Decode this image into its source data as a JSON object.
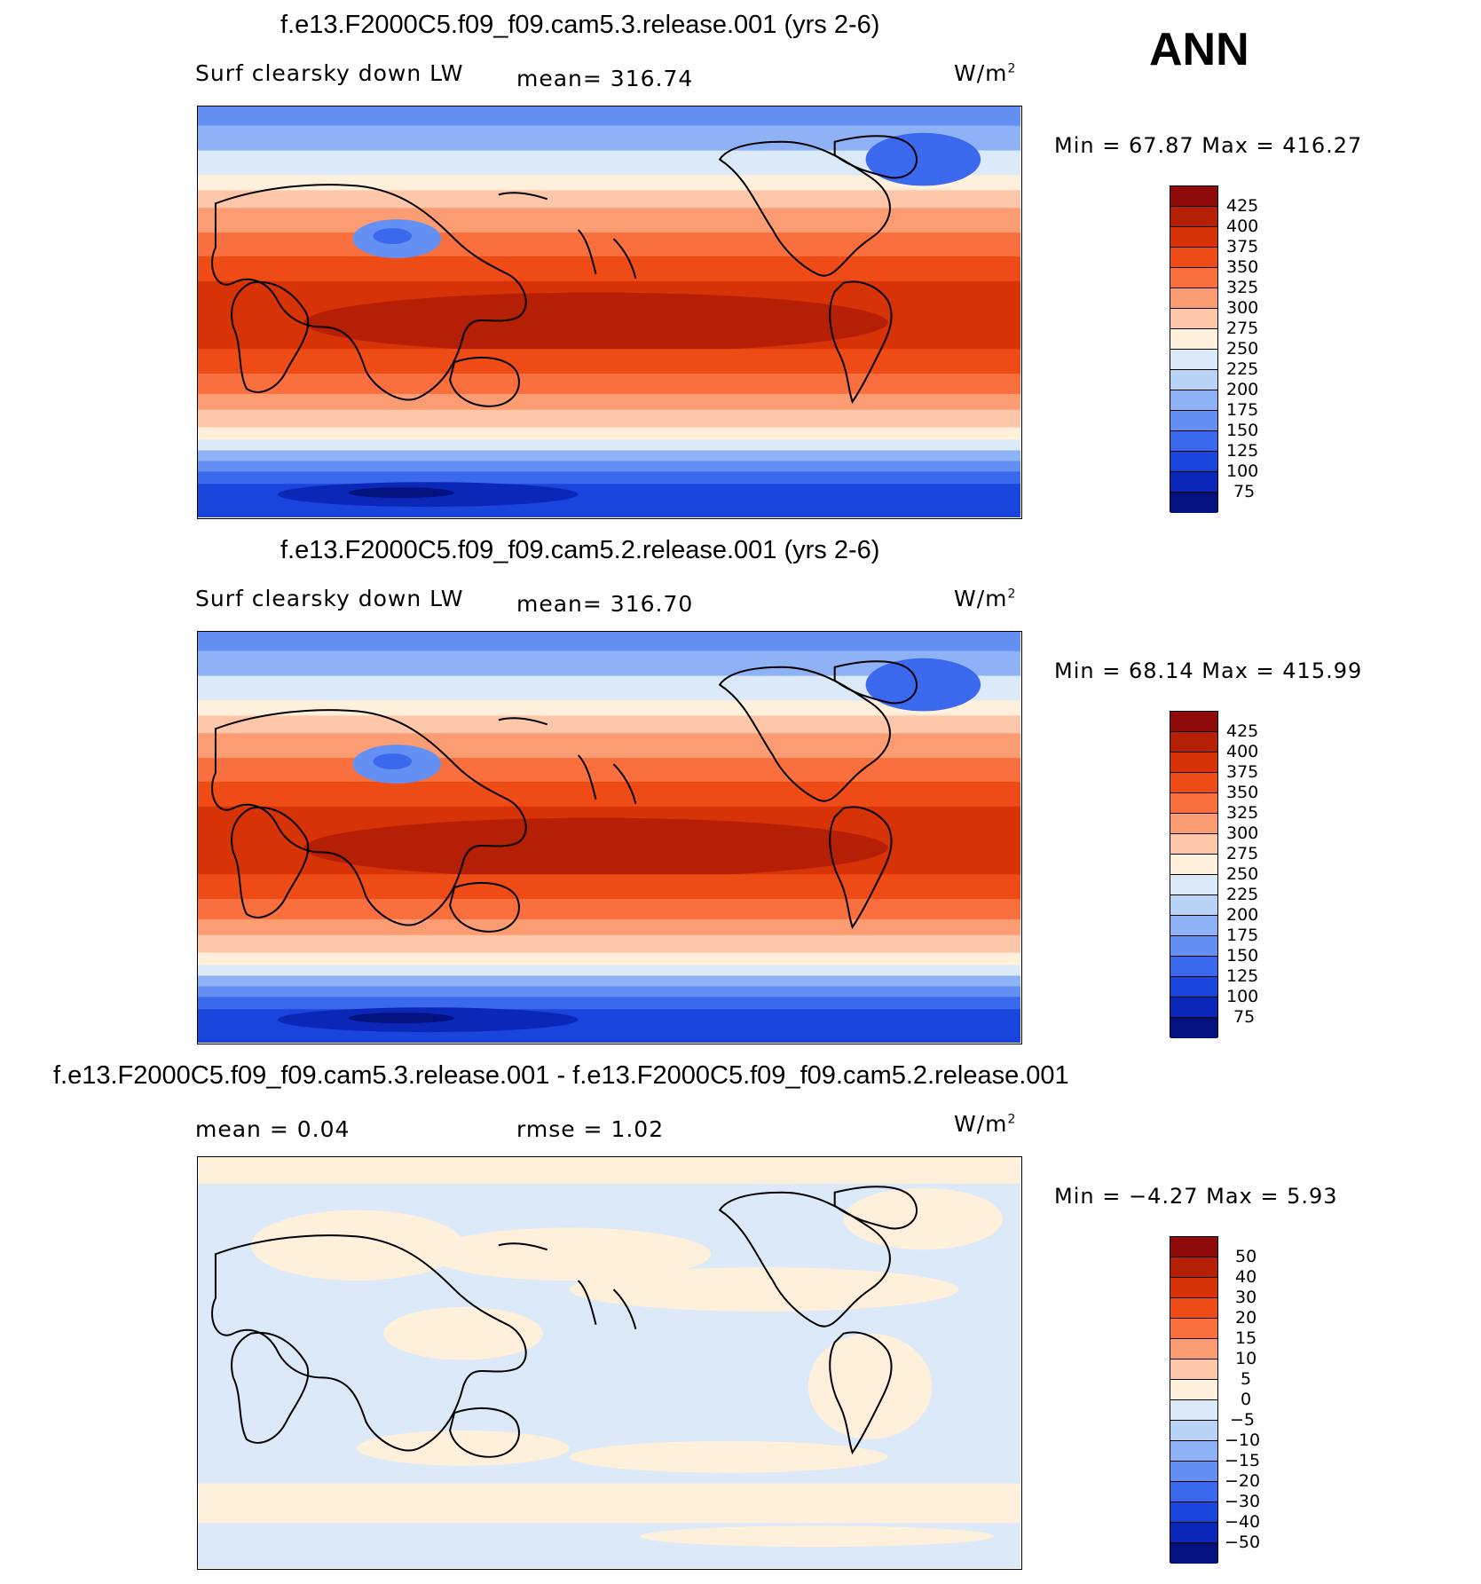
{
  "season": "ANN",
  "panels": [
    {
      "case_title": "f.e13.F2000C5.f09_f09.cam5.3.release.001 (yrs 2-6)",
      "left_label": "Surf clearsky down LW",
      "center_label": "mean=  316.74",
      "units": "W/m",
      "units_sup": "2",
      "stats": "Min =   67.87 Max = 416.27",
      "colorbar_ticks": [
        "425",
        "400",
        "375",
        "350",
        "325",
        "300",
        "275",
        "250",
        "225",
        "200",
        "175",
        "150",
        "125",
        "100",
        "75"
      ],
      "colorbar_colors": [
        "#8c0a0a",
        "#b51f05",
        "#d83307",
        "#ee4b17",
        "#f96f3e",
        "#fc9c73",
        "#fec7aa",
        "#fff0dc",
        "#dbe9f8",
        "#b8d3f6",
        "#8eb2f5",
        "#6490f4",
        "#3a69ee",
        "#1a45dc",
        "#0b27b8",
        "#04127f"
      ]
    },
    {
      "case_title": "f.e13.F2000C5.f09_f09.cam5.2.release.001 (yrs 2-6)",
      "left_label": "Surf clearsky down LW",
      "center_label": "mean=  316.70",
      "units": "W/m",
      "units_sup": "2",
      "stats": "Min =   68.14 Max = 415.99",
      "colorbar_ticks": [
        "425",
        "400",
        "375",
        "350",
        "325",
        "300",
        "275",
        "250",
        "225",
        "200",
        "175",
        "150",
        "125",
        "100",
        "75"
      ],
      "colorbar_colors": [
        "#8c0a0a",
        "#b51f05",
        "#d83307",
        "#ee4b17",
        "#f96f3e",
        "#fc9c73",
        "#fec7aa",
        "#fff0dc",
        "#dbe9f8",
        "#b8d3f6",
        "#8eb2f5",
        "#6490f4",
        "#3a69ee",
        "#1a45dc",
        "#0b27b8",
        "#04127f"
      ]
    },
    {
      "case_title": "f.e13.F2000C5.f09_f09.cam5.3.release.001 - f.e13.F2000C5.f09_f09.cam5.2.release.001",
      "left_label": "mean =    0.04",
      "center_label": "rmse =    1.02",
      "units": "W/m",
      "units_sup": "2",
      "stats": "Min =  −4.27 Max =    5.93",
      "colorbar_ticks": [
        "50",
        "40",
        "30",
        "20",
        "15",
        "10",
        "5",
        "0",
        "−5",
        "−10",
        "−15",
        "−20",
        "−30",
        "−40",
        "−50"
      ],
      "colorbar_colors": [
        "#8c0a0a",
        "#b51f05",
        "#d83307",
        "#ee4b17",
        "#f96f3e",
        "#fc9c73",
        "#fec7aa",
        "#fff0dc",
        "#dbe9f8",
        "#b8d3f6",
        "#8eb2f5",
        "#6490f4",
        "#3a69ee",
        "#1a45dc",
        "#0b27b8",
        "#04127f"
      ]
    }
  ]
}
